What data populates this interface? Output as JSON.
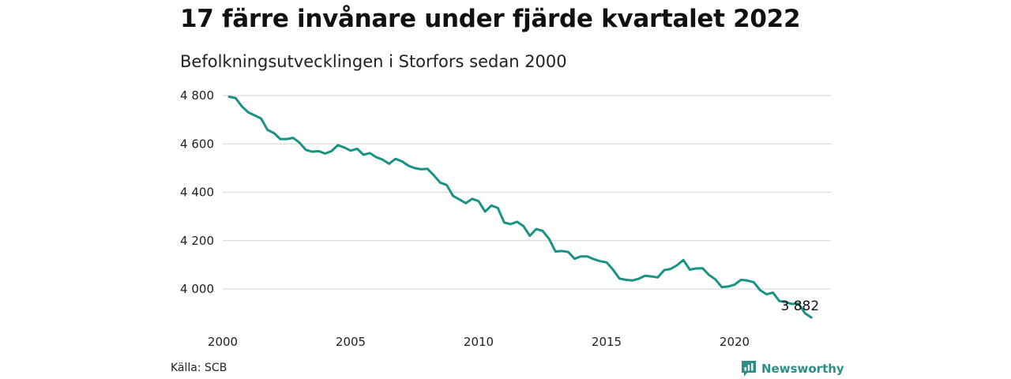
{
  "header": {
    "title": "17 färre invånare under fjärde kvartalet 2022",
    "subtitle": "Befolkningsutvecklingen i Storfors sedan 2000"
  },
  "footer": {
    "source": "Källa: SCB",
    "brand": "Newsworthy"
  },
  "colors": {
    "line": "#1a9384",
    "grid": "#dcdcdc",
    "brand": "#2a8f84"
  },
  "chart_data": {
    "type": "line",
    "title": "17 färre invånare under fjärde kvartalet 2022",
    "subtitle": "Befolkningsutvecklingen i Storfors sedan 2000",
    "xlabel": "",
    "ylabel": "",
    "xlim": [
      2000,
      2023.75
    ],
    "ylim": [
      3850,
      4830
    ],
    "grid": "horizontal",
    "legend": "none",
    "y_ticks": [
      {
        "value": 4000,
        "label": "4 000"
      },
      {
        "value": 4200,
        "label": "4 200"
      },
      {
        "value": 4400,
        "label": "4 400"
      },
      {
        "value": 4600,
        "label": "4 600"
      },
      {
        "value": 4800,
        "label": "4 800"
      }
    ],
    "x_ticks": [
      {
        "value": 2000,
        "label": "2000"
      },
      {
        "value": 2005,
        "label": "2005"
      },
      {
        "value": 2010,
        "label": "2010"
      },
      {
        "value": 2015,
        "label": "2015"
      },
      {
        "value": 2020,
        "label": "2020"
      }
    ],
    "last_label": "3 882",
    "series": [
      {
        "x": [
          2000.25,
          2000.5,
          2000.75,
          2001,
          2001.25,
          2001.5,
          2001.75,
          2002,
          2002.25,
          2002.5,
          2002.75,
          2003,
          2003.25,
          2003.5,
          2003.75,
          2004,
          2004.25,
          2004.5,
          2004.75,
          2005,
          2005.25,
          2005.5,
          2005.75,
          2006,
          2006.25,
          2006.5,
          2006.75,
          2007,
          2007.25,
          2007.5,
          2007.75,
          2008,
          2008.25,
          2008.5,
          2008.75,
          2009,
          2009.25,
          2009.5,
          2009.75,
          2010,
          2010.25,
          2010.5,
          2010.75,
          2011,
          2011.25,
          2011.5,
          2011.75,
          2012,
          2012.25,
          2012.5,
          2012.75,
          2013,
          2013.25,
          2013.5,
          2013.75,
          2014,
          2014.25,
          2014.5,
          2014.75,
          2015,
          2015.25,
          2015.5,
          2015.75,
          2016,
          2016.25,
          2016.5,
          2016.75,
          2017,
          2017.25,
          2017.5,
          2017.75,
          2018,
          2018.25,
          2018.5,
          2018.75,
          2019,
          2019.25,
          2019.5,
          2019.75,
          2020,
          2020.25,
          2020.5,
          2020.75,
          2021,
          2021.25,
          2021.5,
          2021.75,
          2022,
          2022.25,
          2022.5,
          2022.75,
          2023
        ],
        "y": [
          4795,
          4790,
          4755,
          4730,
          4718,
          4705,
          4658,
          4645,
          4620,
          4620,
          4625,
          4605,
          4575,
          4568,
          4570,
          4560,
          4570,
          4595,
          4585,
          4572,
          4580,
          4555,
          4562,
          4545,
          4535,
          4518,
          4538,
          4528,
          4510,
          4500,
          4495,
          4497,
          4470,
          4440,
          4430,
          4385,
          4370,
          4355,
          4373,
          4363,
          4320,
          4345,
          4335,
          4275,
          4268,
          4278,
          4260,
          4220,
          4248,
          4240,
          4208,
          4155,
          4157,
          4153,
          4125,
          4135,
          4135,
          4123,
          4115,
          4110,
          4080,
          4043,
          4038,
          4035,
          4042,
          4055,
          4052,
          4048,
          4078,
          4083,
          4098,
          4120,
          4080,
          4085,
          4086,
          4058,
          4040,
          4008,
          4010,
          4018,
          4038,
          4035,
          4028,
          3995,
          3978,
          3985,
          3950,
          3945,
          3938,
          3940,
          3900,
          3882
        ]
      }
    ]
  }
}
